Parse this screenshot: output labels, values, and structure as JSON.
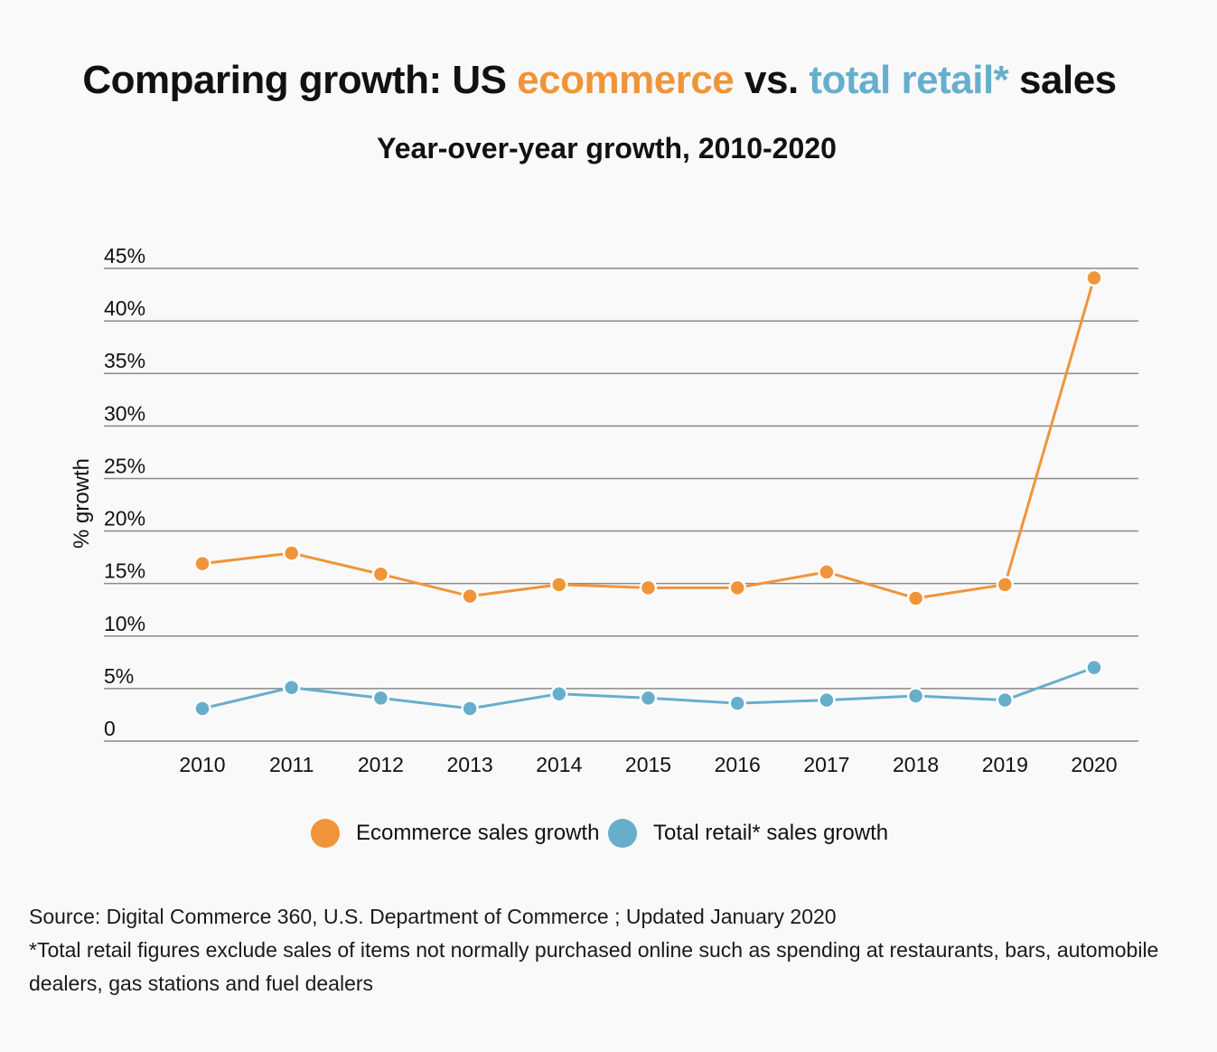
{
  "header": {
    "title_part1": "Comparing growth: US ",
    "title_ecom": "ecommerce",
    "title_part2": " vs. ",
    "title_retail": "total retail*",
    "title_part3": " sales",
    "subtitle": "Year-over-year growth, 2010-2020"
  },
  "colors": {
    "ecommerce": "#f0943a",
    "retail": "#66aecc",
    "grid": "#8a8a8a",
    "background": "#f9f9f9"
  },
  "chart_data": {
    "type": "line",
    "title": "Comparing growth: US ecommerce vs. total retail* sales",
    "subtitle": "Year-over-year growth, 2010-2020",
    "xlabel": "",
    "ylabel": "% growth",
    "ylim": [
      0,
      45
    ],
    "yticks": [
      {
        "value": 0,
        "label": "0"
      },
      {
        "value": 5,
        "label": "5%"
      },
      {
        "value": 10,
        "label": "10%"
      },
      {
        "value": 15,
        "label": "15%"
      },
      {
        "value": 20,
        "label": "20%"
      },
      {
        "value": 25,
        "label": "25%"
      },
      {
        "value": 30,
        "label": "30%"
      },
      {
        "value": 35,
        "label": "35%"
      },
      {
        "value": 40,
        "label": "40%"
      },
      {
        "value": 45,
        "label": "45%"
      }
    ],
    "grid": true,
    "legend_position": "bottom",
    "categories": [
      "2010",
      "2011",
      "2012",
      "2013",
      "2014",
      "2015",
      "2016",
      "2017",
      "2018",
      "2019",
      "2020"
    ],
    "series": [
      {
        "name": "Ecommerce sales growth",
        "color": "#f0943a",
        "values": [
          16.9,
          17.9,
          15.9,
          13.8,
          14.9,
          14.6,
          14.6,
          16.1,
          13.6,
          14.9,
          44.1
        ]
      },
      {
        "name": "Total retail* sales growth",
        "color": "#66aecc",
        "values": [
          3.1,
          5.1,
          4.1,
          3.1,
          4.5,
          4.1,
          3.6,
          3.9,
          4.3,
          3.9,
          7.0
        ]
      }
    ]
  },
  "footnote": {
    "source": "Source: Digital Commerce 360,  U.S. Department of Commerce ; Updated January 2020",
    "note": "*Total retail figures exclude sales of items not normally purchased online such as spending at restaurants, bars, automobile dealers, gas stations and fuel dealers"
  }
}
